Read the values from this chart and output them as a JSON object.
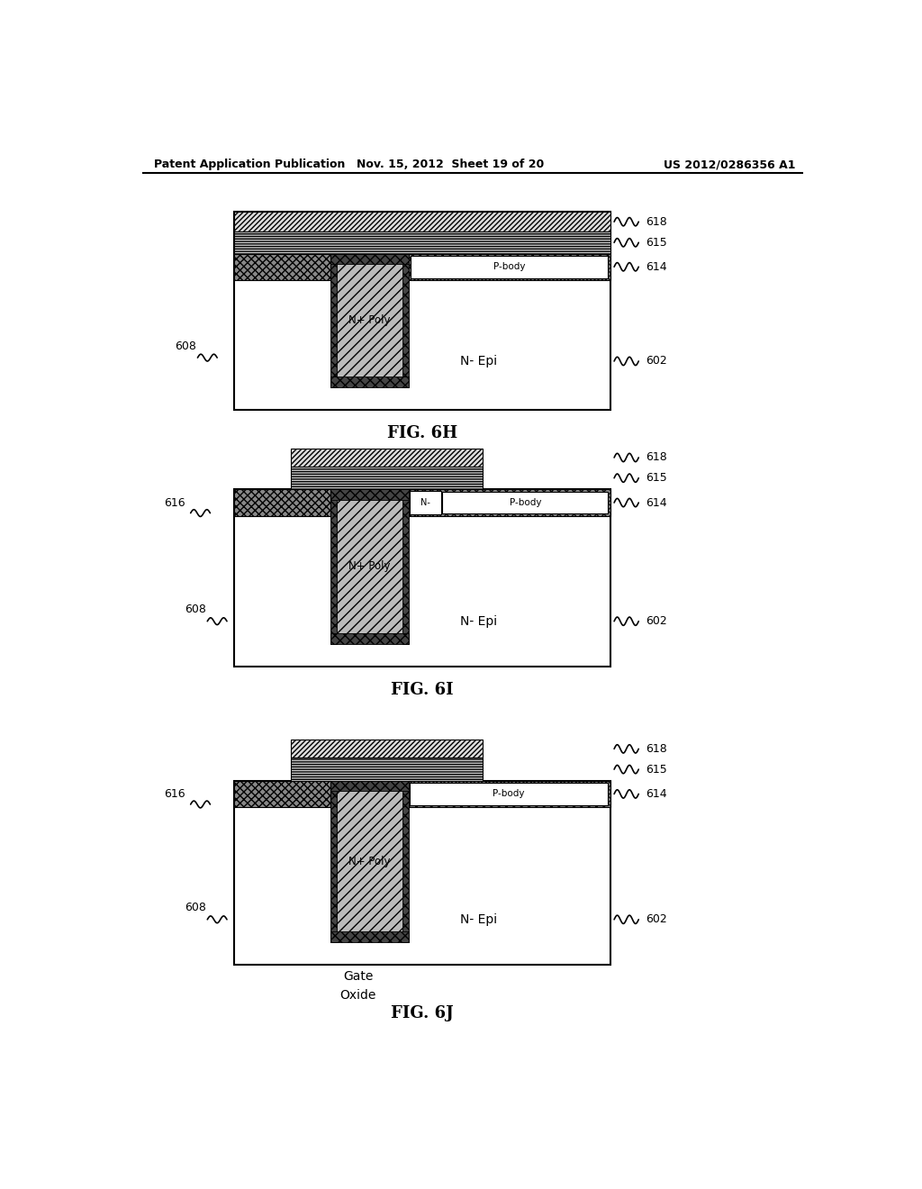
{
  "header_left": "Patent Application Publication",
  "header_mid": "Nov. 15, 2012  Sheet 19 of 20",
  "header_right": "US 2012/0286356 A1",
  "bg": "#ffffff",
  "black": "#000000",
  "fig_labels": [
    "FIG. 6H",
    "FIG. 6I",
    "FIG. 6J"
  ],
  "layer_labels": {
    "618": "618",
    "615": "615",
    "614": "614",
    "602": "602",
    "608": "608",
    "616": "616",
    "npoly": "N+ Poly",
    "pbody": "P-body",
    "nepi": "N- Epi",
    "nminus": "N-",
    "gate": "Gate",
    "oxide": "Oxide"
  },
  "colors": {
    "layer618_fc": "#dddddd",
    "layer615_fc": "#cccccc",
    "layer614_fc": "#888888",
    "trench_wall_fc": "#444444",
    "poly_fc": "#bbbbbb",
    "white": "#ffffff",
    "black": "#000000"
  }
}
